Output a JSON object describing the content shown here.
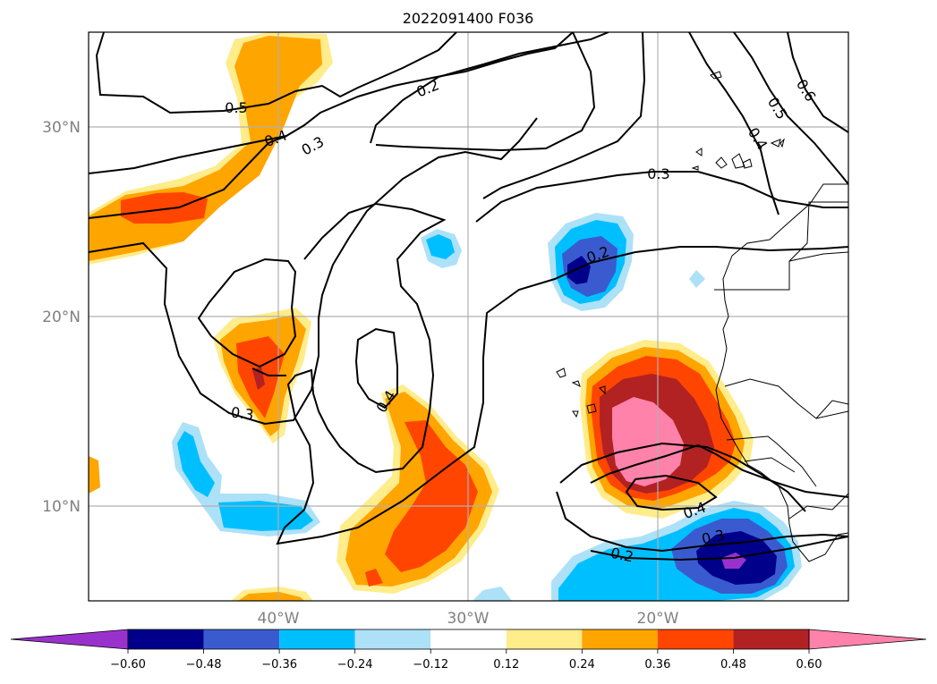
{
  "title": "2022091400 F036",
  "axes": {
    "lat_labels": [
      "30°N",
      "20°N",
      "10°N"
    ],
    "lon_labels": [
      "40°W",
      "30°W",
      "20°W"
    ],
    "lat_values": [
      30,
      20,
      10
    ],
    "lon_values": [
      -40,
      -30,
      -20
    ],
    "extent": {
      "lon_min": -50,
      "lon_max": -10,
      "lat_min": 5,
      "lat_max": 35
    },
    "gridlines": true
  },
  "colorbar": {
    "orientation": "horizontal",
    "extend": "both",
    "tick_labels": [
      "−0.60",
      "−0.48",
      "−0.36",
      "−0.24",
      "−0.12",
      "0.12",
      "0.24",
      "0.36",
      "0.48",
      "0.60"
    ],
    "bins": [
      {
        "color": "#9932CC"
      },
      {
        "color": "#00008B"
      },
      {
        "color": "#3A5BD0"
      },
      {
        "color": "#00BFFF"
      },
      {
        "color": "#ADE1F7"
      },
      {
        "color": "#FFFFFF"
      },
      {
        "color": "#FFEC8B"
      },
      {
        "color": "#FFA500"
      },
      {
        "color": "#FF4500"
      },
      {
        "color": "#B22222"
      },
      {
        "color": "#FF82AB"
      }
    ]
  },
  "contour_labels": [
    "0.5",
    "0.4",
    "0.3",
    "0.2",
    "0.6",
    "0.5",
    "0.4",
    "0.3",
    "0.2",
    "0.3",
    "0.4",
    "0.4",
    "0.3",
    "0.2"
  ]
}
